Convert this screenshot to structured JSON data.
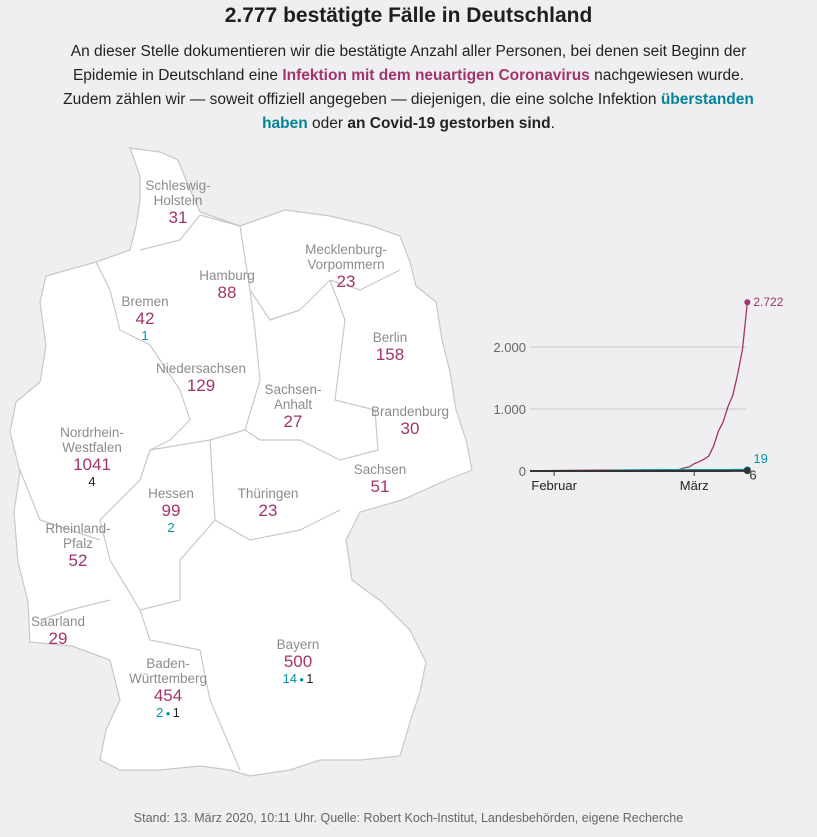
{
  "title": "2.777 bestätigte Fälle in Deutschland",
  "intro": {
    "part1": "An dieser Stelle dokumentieren wir die bestätigte Anzahl aller Personen, bei denen seit Beginn der Epidemie in Deutschland eine ",
    "infected_link": "Infektion mit dem neuartigen Coronavirus",
    "part2": " nachgewiesen wurde. Zudem zählen wir — soweit offiziell angegeben — diejenigen, die eine solche Infektion ",
    "recovered_link": "überstanden haben",
    "part3": " oder ",
    "deaths_text": "an Covid-19 gestorben sind",
    "part4": "."
  },
  "states": [
    {
      "name": "Schleswig-\nHolstein",
      "cases": "31"
    },
    {
      "name": "Hamburg",
      "cases": "88"
    },
    {
      "name": "Mecklenburg-\nVorpommern",
      "cases": "23"
    },
    {
      "name": "Bremen",
      "cases": "42",
      "recovered": "1"
    },
    {
      "name": "Berlin",
      "cases": "158"
    },
    {
      "name": "Niedersachsen",
      "cases": "129"
    },
    {
      "name": "Sachsen-\nAnhalt",
      "cases": "27"
    },
    {
      "name": "Brandenburg",
      "cases": "30"
    },
    {
      "name": "Nordrhein-\nWestfalen",
      "cases": "1041",
      "deaths": "4"
    },
    {
      "name": "Sachsen",
      "cases": "51"
    },
    {
      "name": "Hessen",
      "cases": "99",
      "recovered": "2"
    },
    {
      "name": "Thüringen",
      "cases": "23"
    },
    {
      "name": "Rheinland-\nPfalz",
      "cases": "52"
    },
    {
      "name": "Saarland",
      "cases": "29"
    },
    {
      "name": "Bayern",
      "cases": "500",
      "recovered": "14",
      "deaths": "1"
    },
    {
      "name": "Baden-\nWürttemberg",
      "cases": "454",
      "recovered": "2",
      "deaths": "1"
    }
  ],
  "chart_data": {
    "type": "line",
    "x": [
      "2020-01-27",
      "2020-02-01",
      "2020-02-10",
      "2020-02-20",
      "2020-02-25",
      "2020-02-26",
      "2020-02-27",
      "2020-02-28",
      "2020-02-29",
      "2020-03-01",
      "2020-03-02",
      "2020-03-03",
      "2020-03-04",
      "2020-03-05",
      "2020-03-06",
      "2020-03-07",
      "2020-03-08",
      "2020-03-09",
      "2020-03-10",
      "2020-03-11",
      "2020-03-12"
    ],
    "series": [
      {
        "name": "Infiziert",
        "color": "#a3336d",
        "values": [
          1,
          8,
          14,
          16,
          16,
          18,
          26,
          53,
          66,
          117,
          150,
          188,
          240,
          400,
          639,
          795,
          1040,
          1224,
          1565,
          1966,
          2722
        ],
        "end_label": "2.722"
      },
      {
        "name": "Genesen",
        "color": "#0096aa",
        "values": [
          0,
          0,
          0,
          14,
          16,
          16,
          16,
          16,
          16,
          16,
          16,
          16,
          16,
          16,
          16,
          16,
          16,
          18,
          18,
          19,
          19
        ],
        "end_label": "19"
      },
      {
        "name": "Gestorben",
        "color": "#333333",
        "values": [
          0,
          0,
          0,
          0,
          0,
          0,
          0,
          0,
          0,
          0,
          0,
          0,
          0,
          0,
          0,
          0,
          0,
          2,
          2,
          3,
          6
        ],
        "end_label": "6"
      }
    ],
    "y_ticks": [
      "0",
      "1.000",
      "2.000"
    ],
    "y_tick_values": [
      0,
      1000,
      2000
    ],
    "x_ticks": [
      {
        "label": "Februar",
        "date": "2020-02-01"
      },
      {
        "label": "März",
        "date": "2020-03-01"
      }
    ],
    "ylim": [
      0,
      2722
    ],
    "grid": true
  },
  "footer": "Stand: 13. März 2020, 10:11 Uhr. Quelle: Robert Koch-Institut, Landesbehörden, eigene Recherche"
}
